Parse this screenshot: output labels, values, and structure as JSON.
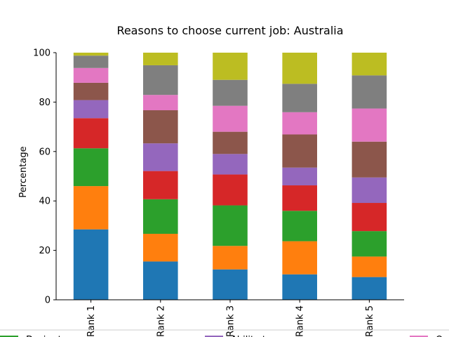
{
  "chart_data": {
    "type": "bar",
    "stacked": true,
    "title": "Reasons to choose current job: Australia",
    "xlabel": "",
    "ylabel": "Percentage",
    "ylim": [
      0,
      100
    ],
    "yticks": [
      0,
      20,
      40,
      60,
      80,
      100
    ],
    "categories": [
      "Rank 1",
      "Rank 2",
      "Rank 3",
      "Rank 4",
      "Rank 5"
    ],
    "colors": [
      "#1f77b4",
      "#ff7f0e",
      "#2ca02c",
      "#d62728",
      "#9467bd",
      "#8c564b",
      "#e377c2",
      "#7f7f7f",
      "#bcbd22"
    ],
    "series": [
      {
        "values": [
          28.5,
          15.5,
          12.3,
          10.3,
          9.2
        ]
      },
      {
        "values": [
          17.5,
          11.2,
          9.5,
          13.4,
          8.3
        ]
      },
      {
        "values": [
          15.3,
          14.0,
          16.4,
          12.3,
          10.3
        ]
      },
      {
        "values": [
          12.2,
          11.4,
          12.5,
          10.3,
          11.4
        ]
      },
      {
        "values": [
          7.3,
          11.2,
          8.3,
          7.2,
          10.3
        ]
      },
      {
        "values": [
          7.0,
          13.4,
          9.0,
          13.4,
          14.5
        ]
      },
      {
        "values": [
          6.0,
          6.2,
          10.5,
          9.0,
          13.4
        ]
      },
      {
        "values": [
          5.0,
          12.0,
          10.5,
          11.5,
          13.4
        ]
      },
      {
        "values": [
          1.2,
          5.1,
          11.0,
          12.6,
          9.2
        ]
      }
    ],
    "legend": {
      "placement": "bottom",
      "entries": [
        {
          "label": "Desire to … …"
        },
        {
          "label": "Ability to … …"
        },
        {
          "label": "O…"
        }
      ],
      "entry_colors": [
        "#2ca02c",
        "#9467bd",
        "#e377c2"
      ]
    },
    "grid": false
  }
}
